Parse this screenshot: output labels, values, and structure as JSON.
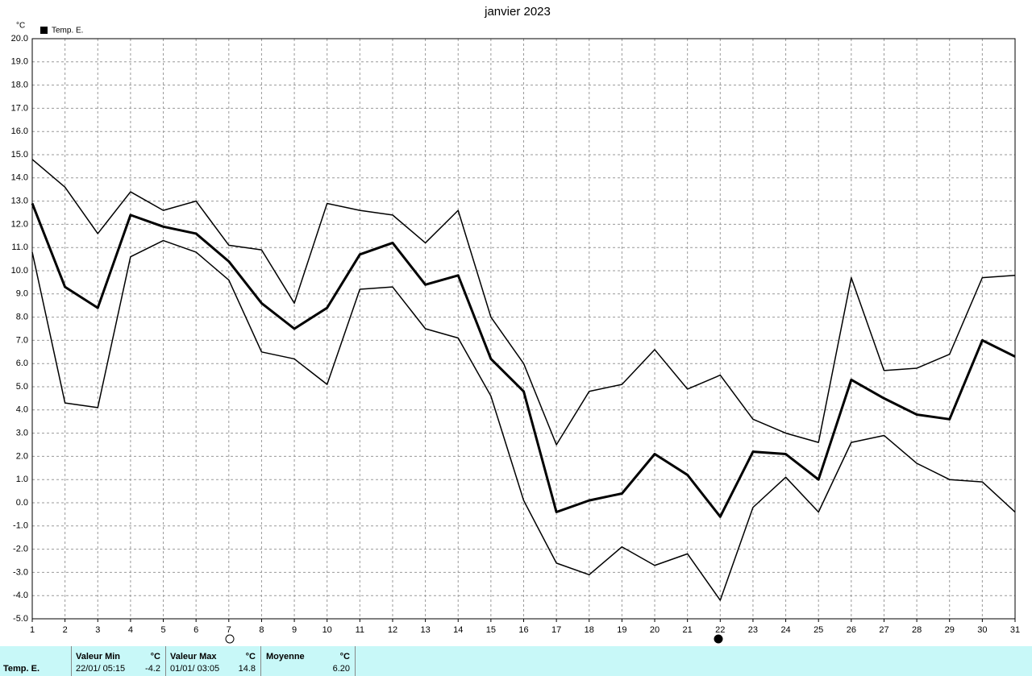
{
  "chart_data": {
    "type": "line",
    "title": "janvier 2023",
    "y_unit": "°C",
    "legend": "Temp. E.",
    "x": [
      1,
      2,
      3,
      4,
      5,
      6,
      7,
      8,
      9,
      10,
      11,
      12,
      13,
      14,
      15,
      16,
      17,
      18,
      19,
      20,
      21,
      22,
      23,
      24,
      25,
      26,
      27,
      28,
      29,
      30,
      31
    ],
    "xlim": [
      1,
      31
    ],
    "xticks": [
      1,
      2,
      3,
      4,
      5,
      6,
      7,
      8,
      9,
      10,
      11,
      12,
      13,
      14,
      15,
      16,
      17,
      18,
      19,
      20,
      21,
      22,
      23,
      24,
      25,
      26,
      27,
      28,
      29,
      30,
      31
    ],
    "ylim": [
      -5,
      20
    ],
    "yticks": [
      {
        "value": 20,
        "label": "20.0"
      },
      {
        "value": 19,
        "label": "19.0"
      },
      {
        "value": 18,
        "label": "18.0"
      },
      {
        "value": 17,
        "label": "17.0"
      },
      {
        "value": 16,
        "label": "16.0"
      },
      {
        "value": 15,
        "label": "15.0"
      },
      {
        "value": 14,
        "label": "14.0"
      },
      {
        "value": 13,
        "label": "13.0"
      },
      {
        "value": 12,
        "label": "12.0"
      },
      {
        "value": 11,
        "label": "11.0"
      },
      {
        "value": 10,
        "label": "10.0"
      },
      {
        "value": 9,
        "label": "9.0"
      },
      {
        "value": 8,
        "label": "8.0"
      },
      {
        "value": 7,
        "label": "7.0"
      },
      {
        "value": 6,
        "label": "6.0"
      },
      {
        "value": 5,
        "label": "5.0"
      },
      {
        "value": 4,
        "label": "4.0"
      },
      {
        "value": 3,
        "label": "3.0"
      },
      {
        "value": 2,
        "label": "2.0"
      },
      {
        "value": 1,
        "label": "1.0"
      },
      {
        "value": 0,
        "label": "0.0"
      },
      {
        "value": -1,
        "label": "-1.0"
      },
      {
        "value": -2,
        "label": "-2.0"
      },
      {
        "value": -3,
        "label": "-3.0"
      },
      {
        "value": -4,
        "label": "-4.0"
      },
      {
        "value": -5,
        "label": "-5.0"
      }
    ],
    "grid": true,
    "series": [
      {
        "color": "#000000",
        "values": [
          14.8,
          13.6,
          11.6,
          13.4,
          12.6,
          13.0,
          11.1,
          10.9,
          8.6,
          12.9,
          12.6,
          12.4,
          11.2,
          12.6,
          8.0,
          6.0,
          2.5,
          4.8,
          5.1,
          6.6,
          4.9,
          5.5,
          3.6,
          3.0,
          2.6,
          9.7,
          5.7,
          5.8,
          6.4,
          9.7,
          9.8
        ]
      },
      {
        "color": "#000000",
        "values": [
          12.9,
          9.3,
          8.4,
          12.4,
          11.9,
          11.6,
          10.4,
          8.6,
          7.5,
          8.4,
          10.7,
          11.2,
          9.4,
          9.8,
          6.2,
          4.8,
          -0.4,
          0.1,
          0.4,
          2.1,
          1.2,
          -0.6,
          2.2,
          2.1,
          1.0,
          5.3,
          4.5,
          3.8,
          3.6,
          7.0,
          6.3
        ]
      },
      {
        "color": "#000000",
        "values": [
          10.8,
          4.3,
          4.1,
          10.6,
          11.3,
          10.8,
          9.6,
          6.5,
          6.2,
          5.1,
          9.2,
          9.3,
          7.5,
          7.1,
          4.6,
          0.1,
          -2.6,
          -3.1,
          -1.9,
          -2.7,
          -2.2,
          -4.2,
          -0.2,
          1.1,
          -0.4,
          2.6,
          2.9,
          1.7,
          1.0,
          0.9,
          -0.4
        ]
      }
    ]
  },
  "summary": {
    "row_label": "Temp. E.",
    "min": {
      "header": "Valeur Min",
      "unit": "°C",
      "when": "22/01/ 05:15",
      "value": "-4.2"
    },
    "max": {
      "header": "Valeur Max",
      "unit": "°C",
      "when": "01/01/ 03:05",
      "value": "14.8"
    },
    "mean": {
      "header": "Moyenne",
      "unit": "°C",
      "value": "6.20"
    }
  }
}
